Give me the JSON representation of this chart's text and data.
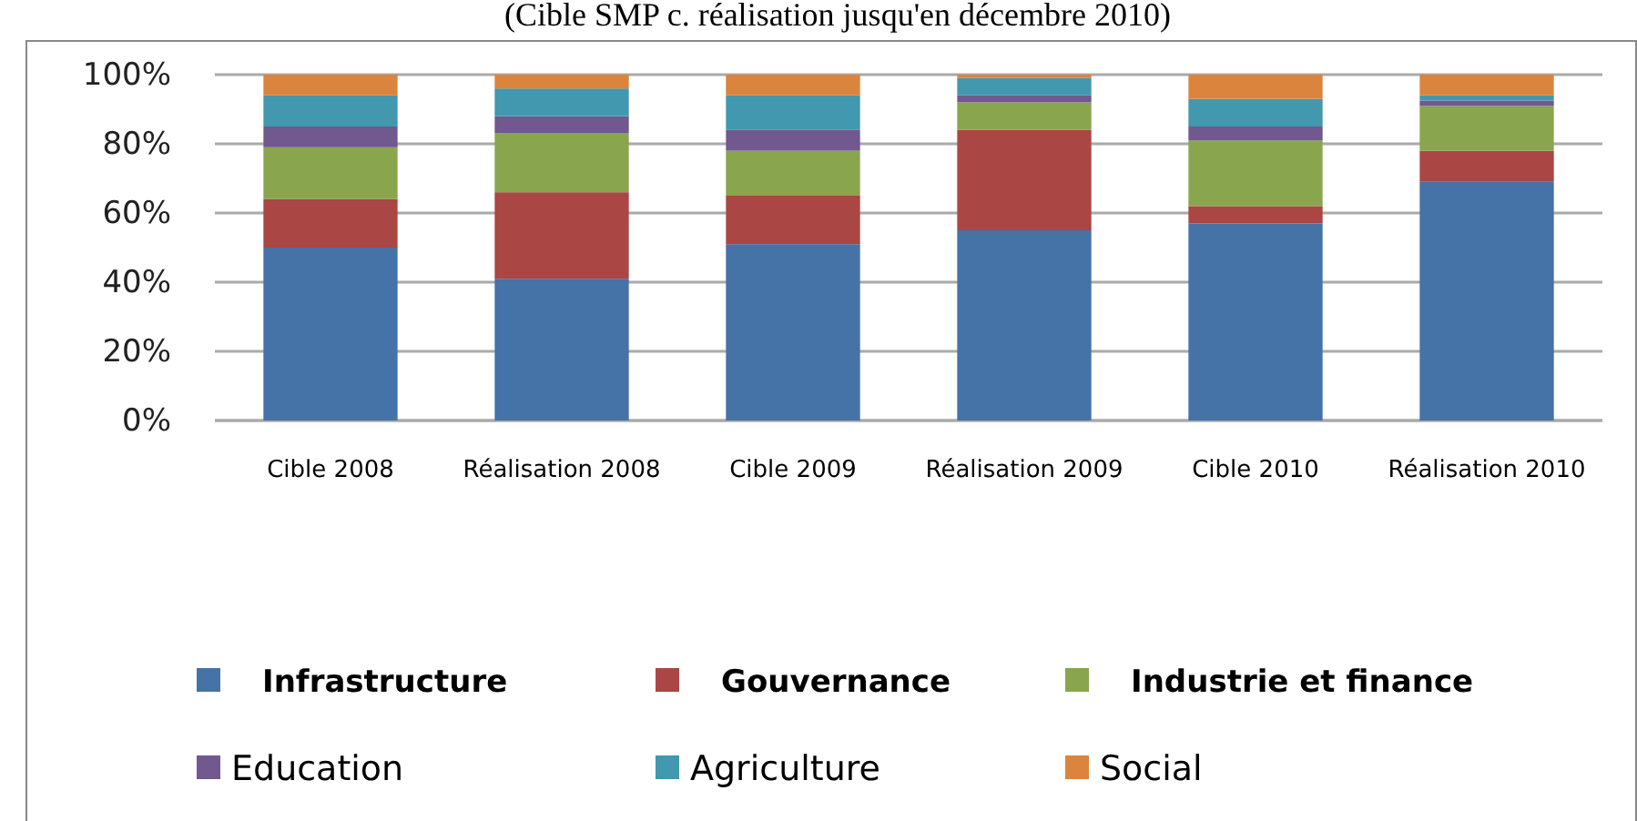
{
  "chart_data": {
    "type": "bar",
    "stacked": true,
    "title": "(Cible SMP c. réalisation jusqu'en décembre 2010)",
    "categories": [
      "Cible 2008",
      "Réalisation 2008",
      "Cible 2009",
      "Réalisation 2009",
      "Cible 2010",
      "Réalisation 2010"
    ],
    "series": [
      {
        "name": "Infrastructure",
        "color": "#4572a7",
        "values": [
          50,
          41,
          51,
          55,
          57,
          69
        ]
      },
      {
        "name": "Gouvernance",
        "color": "#aa4643",
        "values": [
          14,
          25,
          14,
          29,
          5,
          9
        ]
      },
      {
        "name": "Industrie et finance",
        "color": "#89a54e",
        "values": [
          15,
          17,
          13,
          8,
          19,
          13
        ]
      },
      {
        "name": "Education",
        "color": "#71588f",
        "values": [
          6,
          5,
          6,
          2,
          4,
          1.5
        ]
      },
      {
        "name": "Agriculture",
        "color": "#4198af",
        "values": [
          9,
          8,
          10,
          5,
          8,
          1.5
        ]
      },
      {
        "name": "Social",
        "color": "#db843d",
        "values": [
          6,
          4,
          6,
          1,
          7,
          6
        ]
      }
    ],
    "ylim": [
      0,
      100
    ],
    "yticks": [
      {
        "value": 0,
        "label": "0%"
      },
      {
        "value": 20,
        "label": "20%"
      },
      {
        "value": 40,
        "label": "40%"
      },
      {
        "value": 60,
        "label": "60%"
      },
      {
        "value": 80,
        "label": "80%"
      },
      {
        "value": 100,
        "label": "100%"
      }
    ],
    "grid": "y",
    "legend": "bottom"
  }
}
